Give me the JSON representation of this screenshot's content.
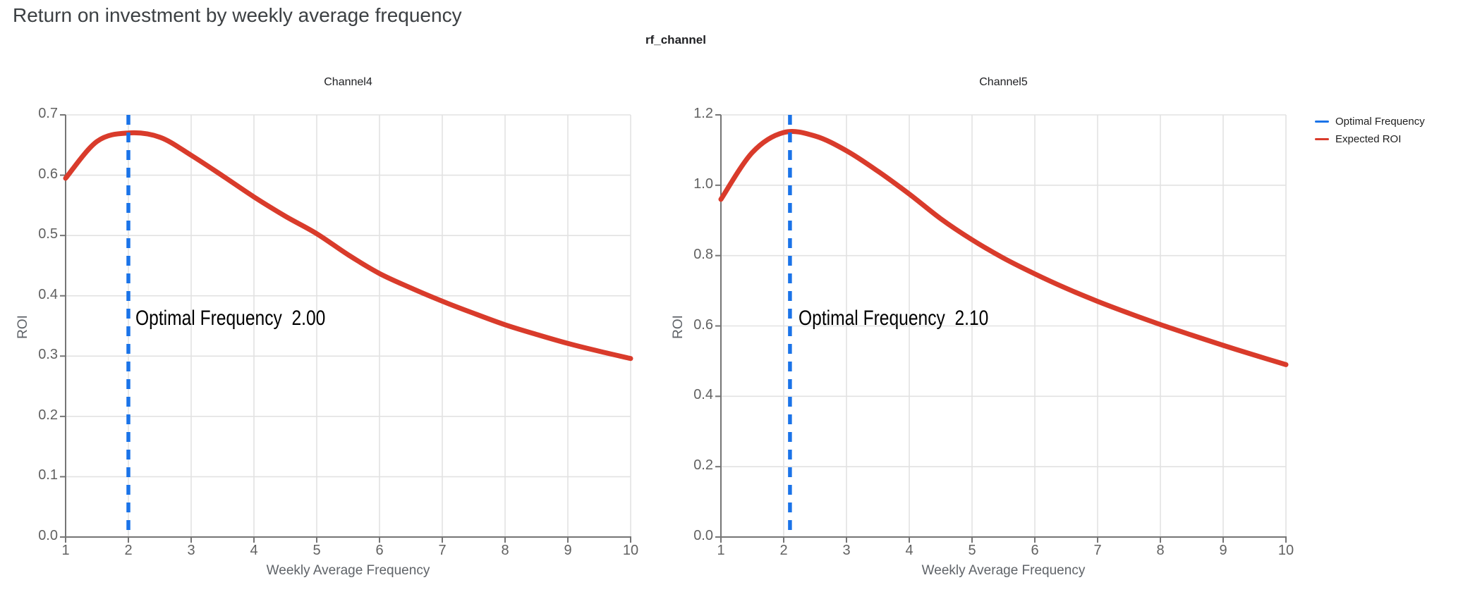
{
  "page": {
    "title": "Return on investment by weekly average frequency"
  },
  "figure": {
    "title": "rf_channel"
  },
  "colors": {
    "optimal_frequency_blue": "#1a73e8",
    "expected_roi_red": "#d93b2b",
    "gridline": "#e2e2e2",
    "spine": "#757575",
    "tick_label": "#616161",
    "axis_title": "#5f6368",
    "page_title": "#3c4043"
  },
  "legend": {
    "position": "top-right",
    "items": [
      {
        "label": "Optimal Frequency",
        "color": "#1a73e8"
      },
      {
        "label": "Expected ROI",
        "color": "#d93b2b"
      }
    ]
  },
  "chart_data": [
    {
      "type": "line",
      "title": "Channel4",
      "xlabel": "Weekly Average Frequency",
      "ylabel": "ROI",
      "xlim": [
        1,
        10
      ],
      "ylim": [
        0,
        0.7
      ],
      "grid": true,
      "xticks": [
        1,
        2,
        3,
        4,
        5,
        6,
        7,
        8,
        9,
        10
      ],
      "ytick_values": [
        0.0,
        0.1,
        0.2,
        0.3,
        0.4,
        0.5,
        0.6,
        0.7
      ],
      "ytick_labels": [
        "0.0",
        "0.1",
        "0.2",
        "0.3",
        "0.4",
        "0.5",
        "0.6",
        "0.7"
      ],
      "optimal_frequency": 2.0,
      "annotation": "Optimal Frequency  2.00",
      "series": [
        {
          "name": "Expected ROI",
          "type": "spline",
          "color": "#d93b2b",
          "x": [
            1,
            1.5,
            2,
            2.5,
            3,
            3.5,
            4,
            4.5,
            5,
            5.5,
            6,
            6.5,
            7,
            7.5,
            8,
            8.5,
            9,
            9.5,
            10
          ],
          "y": [
            0.595,
            0.656,
            0.67,
            0.663,
            0.633,
            0.599,
            0.564,
            0.532,
            0.503,
            0.468,
            0.437,
            0.413,
            0.391,
            0.371,
            0.352,
            0.336,
            0.321,
            0.308,
            0.296
          ]
        },
        {
          "name": "Optimal Frequency",
          "type": "vline",
          "color": "#1a73e8",
          "x": 2.0,
          "dash": [
            14,
            11
          ]
        }
      ]
    },
    {
      "type": "line",
      "title": "Channel5",
      "xlabel": "Weekly Average Frequency",
      "ylabel": "ROI",
      "xlim": [
        1,
        10
      ],
      "ylim": [
        0,
        1.2
      ],
      "grid": true,
      "xticks": [
        1,
        2,
        3,
        4,
        5,
        6,
        7,
        8,
        9,
        10
      ],
      "ytick_values": [
        0.0,
        0.2,
        0.4,
        0.6,
        0.8,
        1.0,
        1.2
      ],
      "ytick_labels": [
        "0.0",
        "0.2",
        "0.4",
        "0.6",
        "0.8",
        "1.0",
        "1.2"
      ],
      "optimal_frequency": 2.1,
      "annotation": "Optimal Frequency  2.10",
      "series": [
        {
          "name": "Expected ROI",
          "type": "spline",
          "color": "#d93b2b",
          "x": [
            1,
            1.5,
            2,
            2.5,
            3,
            3.5,
            4,
            4.5,
            5,
            5.5,
            6,
            6.5,
            7,
            7.5,
            8,
            8.5,
            9,
            9.5,
            10
          ],
          "y": [
            0.96,
            1.093,
            1.15,
            1.14,
            1.098,
            1.04,
            0.975,
            0.905,
            0.845,
            0.793,
            0.748,
            0.707,
            0.67,
            0.636,
            0.604,
            0.574,
            0.545,
            0.517,
            0.49
          ]
        },
        {
          "name": "Optimal Frequency",
          "type": "vline",
          "color": "#1a73e8",
          "x": 2.1,
          "dash": [
            14,
            11
          ]
        }
      ]
    }
  ]
}
